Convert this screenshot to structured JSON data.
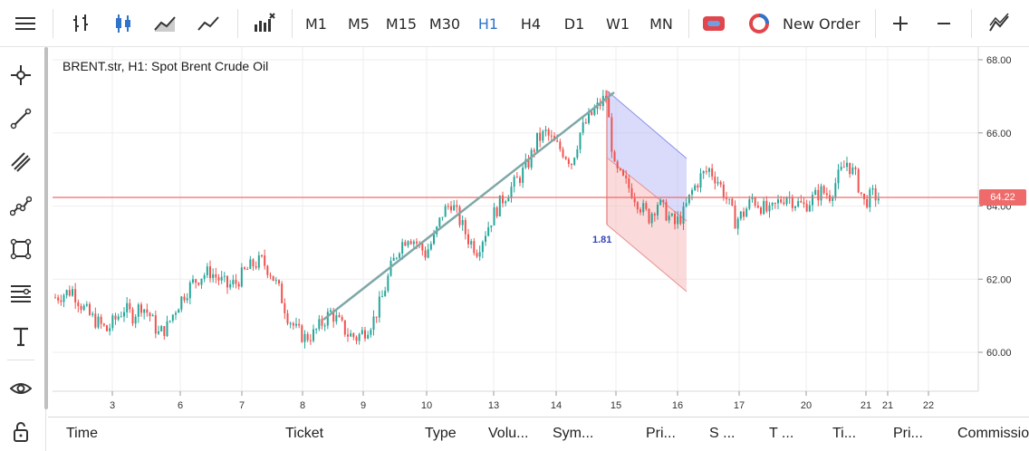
{
  "toolbar": {
    "timeframes": [
      {
        "label": "M1",
        "active": false
      },
      {
        "label": "M5",
        "active": false
      },
      {
        "label": "M15",
        "active": false
      },
      {
        "label": "M30",
        "active": false
      },
      {
        "label": "H1",
        "active": true
      },
      {
        "label": "H4",
        "active": false
      },
      {
        "label": "D1",
        "active": false
      },
      {
        "label": "W1",
        "active": false
      },
      {
        "label": "MN",
        "active": false
      }
    ],
    "new_order_label": "New Order",
    "icons": [
      "menu-icon",
      "bar-chart-icon",
      "candlestick-chart-icon",
      "area-chart-icon",
      "line-chart-icon",
      "indicators-icon",
      "trade-mode-icon",
      "new-order-icon",
      "zoom-in-icon",
      "zoom-out-icon",
      "indicator-settings-icon"
    ]
  },
  "left_tools": [
    "crosshair-icon",
    "trendline-icon",
    "channel-icon",
    "polyline-icon",
    "shapes-icon",
    "fibonacci-icon",
    "text-icon",
    "visibility-eye-icon",
    "lock-icon"
  ],
  "chart": {
    "title": "BRENT.str, H1: Spot Brent Crude Oil",
    "current_price": "64.22",
    "measure_label": "1.81",
    "colors": {
      "up": "#26a69a",
      "down": "#ef5350",
      "price_line": "#ef6b6b",
      "trend": "#7fa7a7"
    }
  },
  "chart_data": {
    "type": "candlestick",
    "y_ticks": [
      "68.00",
      "66.00",
      "64.00",
      "62.00",
      "60.00"
    ],
    "ylim": [
      58.9,
      68.2
    ],
    "x_ticks": [
      "3",
      "6",
      "7",
      "8",
      "9",
      "10",
      "13",
      "14",
      "15",
      "16",
      "17",
      "20",
      "21",
      "21",
      "22"
    ],
    "current_price": 64.22,
    "close_series": [
      61.5,
      61.6,
      61.7,
      61.3,
      61.0,
      60.8,
      60.6,
      60.9,
      61.2,
      61.0,
      61.3,
      61.0,
      60.5,
      60.7,
      61.2,
      61.6,
      61.9,
      62.1,
      62.2,
      62.0,
      61.8,
      61.9,
      62.2,
      62.4,
      62.5,
      62.2,
      61.7,
      61.0,
      60.6,
      60.4,
      60.5,
      60.8,
      61.1,
      60.8,
      60.5,
      60.4,
      60.6,
      60.9,
      61.5,
      62.3,
      62.9,
      63.2,
      63.0,
      62.7,
      63.1,
      63.8,
      64.1,
      63.6,
      63.1,
      62.8,
      63.3,
      63.8,
      64.2,
      64.5,
      64.8,
      65.2,
      65.8,
      66.0,
      65.7,
      65.5,
      65.2,
      66.0,
      66.4,
      66.7,
      67.0,
      65.0,
      64.7,
      64.4,
      64.0,
      63.7,
      64.1,
      63.8,
      63.5,
      63.8,
      64.4,
      64.8,
      65.0,
      64.7,
      64.2,
      63.6,
      63.8,
      64.2,
      64.0,
      63.8,
      64.1,
      64.3,
      64.1,
      64.0,
      64.2,
      64.4,
      64.3,
      64.8,
      65.2,
      64.8,
      64.1,
      64.3,
      64.2
    ]
  },
  "table": {
    "columns": [
      "Time",
      "Ticket",
      "Type",
      "Volu...",
      "Sym...",
      "Pri...",
      "S ...",
      "T ...",
      "Ti...",
      "Pri...",
      "Commissio"
    ]
  }
}
